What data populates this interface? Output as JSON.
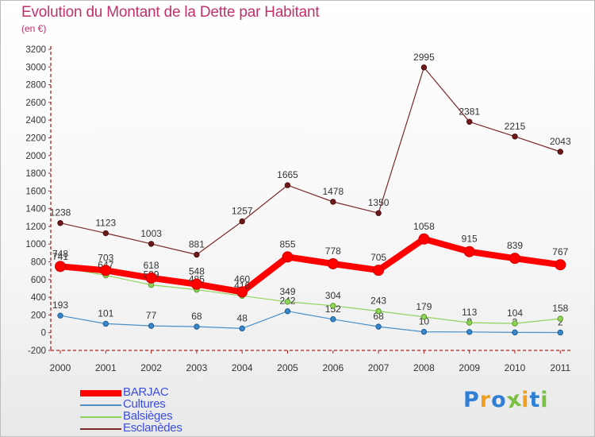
{
  "header": {
    "title": "Evolution du Montant de la Dette par Habitant",
    "subtitle": "(en €)"
  },
  "logo": {
    "text": "Proxiti",
    "letter_colors": [
      "#2f7fd6",
      "#f0a020",
      "#2f7fd6",
      "#7ac043",
      "#f0a020",
      "#2f7fd6",
      "#7ac043"
    ]
  },
  "chart_data": {
    "type": "line",
    "x": [
      "2000",
      "2001",
      "2002",
      "2003",
      "2004",
      "2005",
      "2006",
      "2007",
      "2008",
      "2009",
      "2010",
      "2011"
    ],
    "ylim": [
      -200,
      3200
    ],
    "yticks": [
      -200,
      0,
      200,
      400,
      600,
      800,
      1000,
      1200,
      1400,
      1600,
      1800,
      2000,
      2200,
      2400,
      2600,
      2800,
      3000,
      3200
    ],
    "grid": false,
    "legend_position": "bottom-left",
    "series": [
      {
        "name": "BARJAC",
        "color": "#ff0000",
        "values": [
          748,
          703,
          618,
          548,
          460,
          855,
          778,
          705,
          1058,
          915,
          839,
          767
        ]
      },
      {
        "name": "Cultures",
        "color": "#4a8fc8",
        "values": [
          193,
          101,
          77,
          68,
          48,
          242,
          152,
          68,
          10,
          8,
          3,
          2
        ]
      },
      {
        "name": "Balsièges",
        "color": "#8fd35a",
        "values": [
          741,
          647,
          539,
          485,
          416,
          349,
          304,
          243,
          179,
          113,
          104,
          158
        ]
      },
      {
        "name": "Esclanèdes",
        "color": "#7a2828",
        "values": [
          1238,
          1123,
          1003,
          881,
          1257,
          1665,
          1478,
          1350,
          2995,
          2381,
          2215,
          2043
        ]
      }
    ]
  }
}
